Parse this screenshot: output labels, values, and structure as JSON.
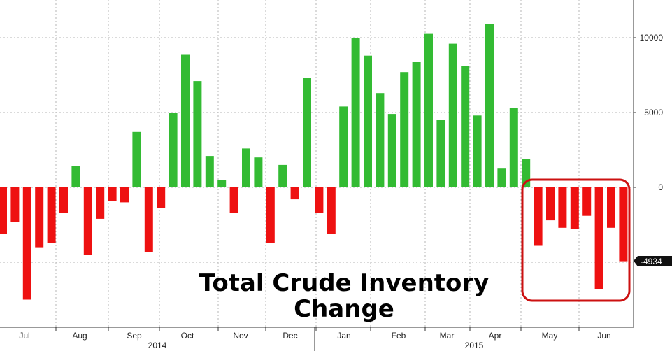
{
  "chart_data": {
    "type": "bar",
    "title": [
      "Total Crude Inventory",
      "Change"
    ],
    "xlabel": "",
    "ylabel": "",
    "ylim": [
      -9200,
      12500
    ],
    "yticks": [
      10000,
      5000,
      0
    ],
    "grid": true,
    "colors": {
      "positive": "#33bb33",
      "negative": "#ee1111",
      "highlight": "#cc1111"
    },
    "last_value_label": "-4934",
    "months": [
      "Jul",
      "Aug",
      "Sep",
      "Oct",
      "Nov",
      "Dec",
      "Jan",
      "Feb",
      "Mar",
      "Apr",
      "May",
      "Jun"
    ],
    "years": [
      "2014",
      "2015"
    ],
    "values": [
      -3100,
      -2300,
      -7500,
      -4000,
      -3700,
      -1700,
      1400,
      -4500,
      -2100,
      -900,
      -1000,
      3700,
      -4300,
      -1400,
      5000,
      8900,
      7100,
      2100,
      500,
      -1700,
      2600,
      2000,
      -3700,
      1500,
      -800,
      7300,
      -1700,
      -3100,
      5400,
      10000,
      8800,
      6300,
      4900,
      7700,
      8400,
      10300,
      4500,
      9600,
      8100,
      4800,
      10900,
      1300,
      5300,
      1900,
      -3900,
      -2200,
      -2700,
      -2800,
      -1900,
      -6800,
      -2700,
      -4934
    ]
  }
}
